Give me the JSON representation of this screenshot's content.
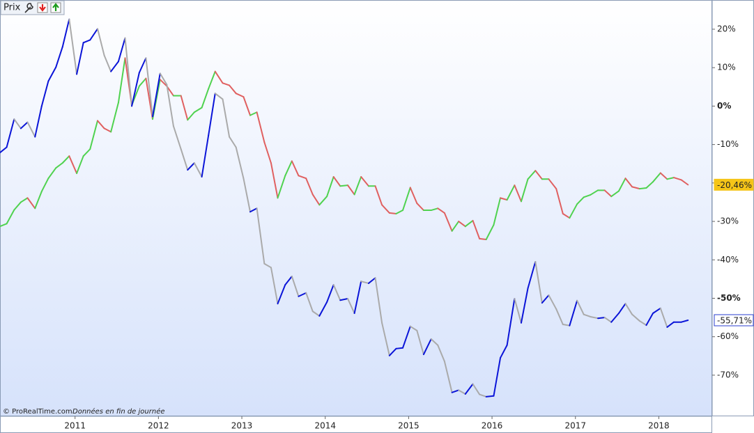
{
  "chart_data": {
    "type": "line",
    "header_label": "Prix",
    "footer_credit": "© ProRealTime.com",
    "footer_note": "Données en fin de journée",
    "x": [
      2010.1,
      2010.18,
      2010.27,
      2010.35,
      2010.43,
      2010.52,
      2010.6,
      2010.68,
      2010.77,
      2010.85,
      2010.93,
      2011.02,
      2011.1,
      2011.18,
      2011.27,
      2011.35,
      2011.43,
      2011.52,
      2011.6,
      2011.68,
      2011.77,
      2011.85,
      2011.93,
      2012.02,
      2012.1,
      2012.18,
      2012.27,
      2012.35,
      2012.43,
      2012.52,
      2012.6,
      2012.68,
      2012.77,
      2012.85,
      2012.93,
      2013.02,
      2013.1,
      2013.18,
      2013.27,
      2013.35,
      2013.43,
      2013.52,
      2013.6,
      2013.68,
      2013.77,
      2013.85,
      2013.93,
      2014.02,
      2014.1,
      2014.18,
      2014.27,
      2014.35,
      2014.43,
      2014.52,
      2014.6,
      2014.68,
      2014.77,
      2014.85,
      2014.93,
      2015.02,
      2015.1,
      2015.18,
      2015.27,
      2015.35,
      2015.43,
      2015.52,
      2015.6,
      2015.68,
      2015.77,
      2015.85,
      2015.93,
      2016.02,
      2016.1,
      2016.18,
      2016.27,
      2016.35,
      2016.43,
      2016.52,
      2016.6,
      2016.68,
      2016.77,
      2016.85,
      2016.93,
      2017.02,
      2017.1,
      2017.18,
      2017.27,
      2017.35,
      2017.43,
      2017.52,
      2017.6,
      2017.68,
      2017.77,
      2017.85,
      2017.93,
      2018.02,
      2018.1,
      2018.18,
      2018.27,
      2018.35
    ],
    "xlim": [
      2010.1,
      2018.64
    ],
    "xticks": [
      2011,
      2012,
      2013,
      2014,
      2015,
      2016,
      2017,
      2018
    ],
    "ylim": [
      -80.7,
      27.6
    ],
    "yticks": [
      {
        "value": 20,
        "label": "20%"
      },
      {
        "value": 10,
        "label": "10%"
      },
      {
        "value": 0,
        "label": "0%",
        "bold": true
      },
      {
        "value": -10,
        "label": "-10%"
      },
      {
        "value": -20,
        "label": "-20%"
      },
      {
        "value": -30,
        "label": "-30%"
      },
      {
        "value": -40,
        "label": "-40%"
      },
      {
        "value": -50,
        "label": "-50%",
        "bold": true
      },
      {
        "value": -60,
        "label": "-60%"
      },
      {
        "value": -70,
        "label": "-70%"
      }
    ],
    "series": [
      {
        "up_color": "#4fd24f",
        "down_color": "#e06060",
        "last_label": "-20,46%",
        "last_label_style": {
          "background": "#f5c518",
          "border": "#f5c518",
          "text": "#000000"
        },
        "values": [
          -31.3,
          -30.6,
          -27.0,
          -25.0,
          -23.9,
          -26.6,
          -22.2,
          -18.8,
          -16.1,
          -14.8,
          -13.0,
          -17.5,
          -13.0,
          -11.2,
          -3.8,
          -5.8,
          -6.7,
          0.9,
          12.5,
          0.2,
          5.2,
          7.2,
          -3.4,
          6.9,
          5.2,
          2.7,
          2.7,
          -3.6,
          -1.6,
          -0.4,
          4.5,
          9.0,
          6.0,
          5.4,
          3.3,
          2.4,
          -2.4,
          -1.6,
          -9.4,
          -14.8,
          -23.9,
          -18.1,
          -14.3,
          -18.1,
          -18.8,
          -23.0,
          -25.7,
          -23.5,
          -18.4,
          -20.8,
          -20.6,
          -23.0,
          -18.4,
          -20.8,
          -20.8,
          -25.7,
          -27.8,
          -28.0,
          -27.1,
          -21.2,
          -25.3,
          -27.1,
          -27.1,
          -26.6,
          -27.8,
          -32.5,
          -30.0,
          -31.3,
          -29.8,
          -34.5,
          -34.7,
          -30.9,
          -23.9,
          -24.4,
          -20.6,
          -24.8,
          -19.0,
          -16.8,
          -19.0,
          -19.0,
          -21.5,
          -28.0,
          -29.1,
          -25.5,
          -23.7,
          -23.1,
          -21.9,
          -21.9,
          -23.5,
          -22.1,
          -18.8,
          -21.0,
          -21.5,
          -21.3,
          -19.7,
          -17.4,
          -19.0,
          -18.6,
          -19.2,
          -20.46
        ]
      },
      {
        "up_color": "#0a14d8",
        "down_color": "#aaaaaa",
        "last_label": "-55,71%",
        "last_label_style": {
          "background": "#ffffff",
          "border": "#2a3fd0",
          "text": "#2a3fd0"
        },
        "values": [
          -12.1,
          -10.7,
          -3.4,
          -5.8,
          -4.2,
          -8.0,
          0.0,
          6.5,
          10.1,
          15.4,
          22.6,
          8.3,
          16.5,
          17.2,
          20.1,
          13.2,
          9.0,
          11.6,
          17.7,
          0.0,
          8.7,
          12.5,
          -2.7,
          8.5,
          5.6,
          -5.2,
          -11.2,
          -16.6,
          -14.8,
          -18.4,
          -7.6,
          3.3,
          1.8,
          -8.0,
          -10.7,
          -18.8,
          -27.5,
          -26.6,
          -41.0,
          -42.0,
          -51.4,
          -46.5,
          -44.3,
          -49.5,
          -48.6,
          -53.4,
          -54.6,
          -51.0,
          -46.5,
          -50.5,
          -50.1,
          -53.9,
          -45.6,
          -46.1,
          -44.7,
          -56.4,
          -64.9,
          -63.1,
          -62.9,
          -57.3,
          -58.4,
          -64.6,
          -60.6,
          -62.2,
          -66.4,
          -74.5,
          -73.9,
          -74.9,
          -72.3,
          -75.0,
          -75.6,
          -75.4,
          -65.5,
          -62.2,
          -50.1,
          -56.4,
          -47.4,
          -40.5,
          -51.2,
          -49.2,
          -52.8,
          -56.8,
          -57.1,
          -50.6,
          -54.2,
          -54.8,
          -55.2,
          -55.0,
          -56.2,
          -53.9,
          -51.4,
          -54.2,
          -55.9,
          -57.0,
          -53.9,
          -52.6,
          -57.5,
          -56.2,
          -56.2,
          -55.71
        ]
      }
    ]
  }
}
